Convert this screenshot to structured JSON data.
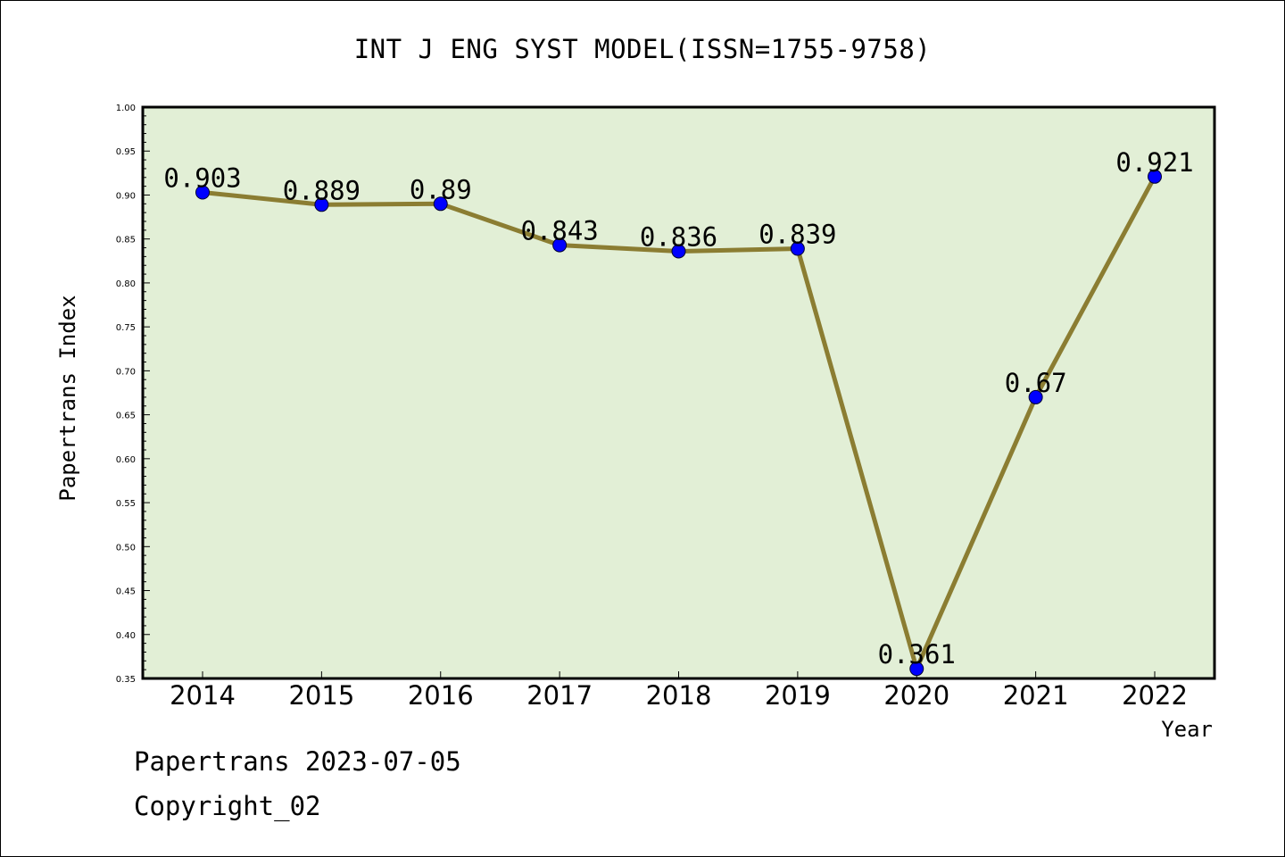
{
  "chart_data": {
    "type": "line",
    "title": "INT J ENG SYST MODEL(ISSN=1755-9758)",
    "xlabel": "Year",
    "ylabel": "Papertrans Index",
    "categories": [
      "2014",
      "2015",
      "2016",
      "2017",
      "2018",
      "2019",
      "2020",
      "2021",
      "2022"
    ],
    "series": [
      {
        "values": [
          0.903,
          0.889,
          0.89,
          0.843,
          0.836,
          0.839,
          0.361,
          0.67,
          0.921
        ],
        "labels": [
          "0.903",
          "0.889",
          "0.89",
          "0.843",
          "0.836",
          "0.839",
          "0.361",
          "0.67",
          "0.921"
        ],
        "line_color": "#8b7d32",
        "marker_color": "#0000ff"
      }
    ],
    "ylim": [
      0.35,
      1.0
    ],
    "yticks": [
      "0.35",
      "0.40",
      "0.45",
      "0.50",
      "0.55",
      "0.60",
      "0.65",
      "0.70",
      "0.75",
      "0.80",
      "0.85",
      "0.90",
      "0.95",
      "1.00"
    ],
    "plot_background": "#e2efd6",
    "grid": false,
    "legend": "none"
  },
  "footer": {
    "date_line": "Papertrans 2023-07-05",
    "copyright_line": "Copyright_02"
  }
}
